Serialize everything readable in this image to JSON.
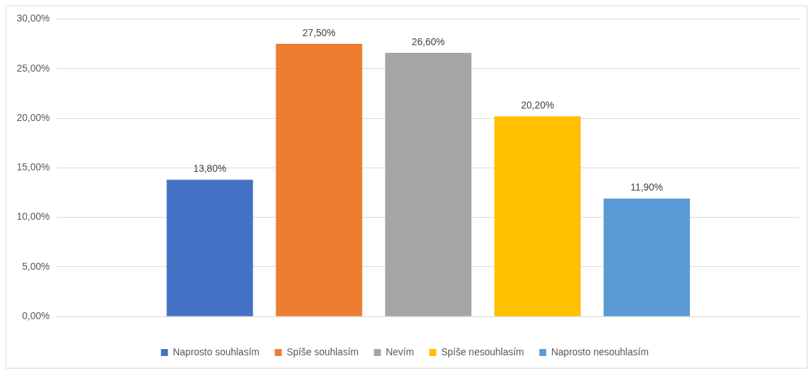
{
  "chart_data": {
    "type": "bar",
    "categories": [
      null
    ],
    "series": [
      {
        "name": "Naprosto souhlasím",
        "color": "#4472c4",
        "values": [
          13.8
        ],
        "value_labels": [
          "13,80%"
        ]
      },
      {
        "name": "Spíše souhlasím",
        "color": "#ed7d31",
        "values": [
          27.5
        ],
        "value_labels": [
          "27,50%"
        ]
      },
      {
        "name": "Nevím",
        "color": "#a5a5a5",
        "values": [
          26.6
        ],
        "value_labels": [
          "26,60%"
        ]
      },
      {
        "name": "Spíše nesouhlasím",
        "color": "#ffc000",
        "values": [
          20.2
        ],
        "value_labels": [
          "20,20%"
        ]
      },
      {
        "name": "Naprosto nesouhlasím",
        "color": "#5b9bd5",
        "values": [
          11.9
        ],
        "value_labels": [
          "11,90%"
        ]
      }
    ],
    "ylim": [
      0,
      30
    ],
    "yticks": [
      {
        "value": 0,
        "label": "0,00%"
      },
      {
        "value": 5,
        "label": "5,00%"
      },
      {
        "value": 10,
        "label": "10,00%"
      },
      {
        "value": 15,
        "label": "15,00%"
      },
      {
        "value": 20,
        "label": "20,00%"
      },
      {
        "value": 25,
        "label": "25,00%"
      },
      {
        "value": 30,
        "label": "30,00%"
      }
    ],
    "grid": "y",
    "legend": "bottom"
  }
}
